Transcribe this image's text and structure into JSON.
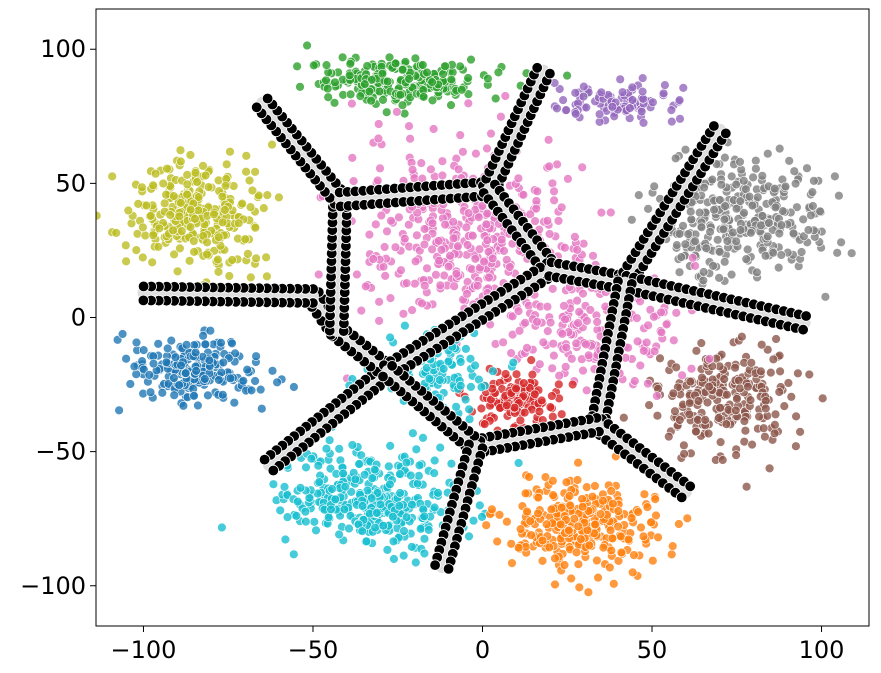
{
  "chart_data": {
    "type": "scatter",
    "title": "",
    "xlabel": "",
    "ylabel": "",
    "xlim": [
      -114,
      114
    ],
    "ylim": [
      -115,
      115
    ],
    "grid": false,
    "legend": "none",
    "xticks": [
      -100,
      -50,
      0,
      50,
      100
    ],
    "yticks": [
      -100,
      -50,
      0,
      50,
      100
    ],
    "xtick_labels": [
      "−100",
      "−50",
      "0",
      "50",
      "100"
    ],
    "ytick_labels": [
      "−100",
      "−50",
      "0",
      "50",
      "100"
    ],
    "point_outline_color": "#ffffff",
    "clusters": [
      {
        "color": "#2ca02c",
        "center": [
          -25,
          88
        ],
        "spread": [
          22,
          7
        ],
        "count": 240
      },
      {
        "color": "#1f77b4",
        "center": [
          -85,
          -20
        ],
        "spread": [
          15,
          10
        ],
        "count": 220
      },
      {
        "color": "#bcbd22",
        "center": [
          -85,
          38
        ],
        "spread": [
          16,
          16
        ],
        "count": 300
      },
      {
        "color": "#17becf",
        "center": [
          -32,
          -68
        ],
        "spread": [
          22,
          15
        ],
        "count": 380
      },
      {
        "color": "#ff7f0e",
        "center": [
          30,
          -78
        ],
        "spread": [
          18,
          14
        ],
        "count": 300
      },
      {
        "color": "#7f7f7f",
        "center": [
          75,
          38
        ],
        "spread": [
          20,
          18
        ],
        "count": 340
      },
      {
        "color": "#8c564b",
        "center": [
          72,
          -30
        ],
        "spread": [
          18,
          16
        ],
        "count": 240
      },
      {
        "color": "#e377c2",
        "center": [
          -5,
          30
        ],
        "spread": [
          28,
          28
        ],
        "count": 460
      },
      {
        "color": "#e377c2",
        "center": [
          35,
          -5
        ],
        "spread": [
          20,
          18
        ],
        "count": 200
      },
      {
        "color": "#d62728",
        "center": [
          10,
          -30
        ],
        "spread": [
          10,
          8
        ],
        "count": 120
      },
      {
        "color": "#9467bd",
        "center": [
          40,
          80
        ],
        "spread": [
          15,
          6
        ],
        "count": 100
      },
      {
        "color": "#17becf",
        "center": [
          -15,
          -20
        ],
        "spread": [
          15,
          12
        ],
        "count": 120
      }
    ],
    "boundary_color": "#000000",
    "boundary_nodes": {
      "A": [
        -28,
        -20
      ],
      "B": [
        20,
        18
      ],
      "C": [
        42,
        13
      ],
      "D": [
        -42,
        44
      ],
      "E": [
        2,
        48
      ],
      "F": [
        -2,
        -48
      ],
      "G": [
        34,
        -40
      ]
    },
    "boundary_segments": [
      [
        "A",
        [
          -63,
          -55
        ]
      ],
      [
        "A",
        [
          -43,
          -5
        ]
      ],
      [
        [
          -43,
          -5
        ],
        [
          -50,
          8
        ]
      ],
      [
        [
          -50,
          8
        ],
        [
          -100,
          9
        ]
      ],
      [
        [
          -43,
          -5
        ],
        "D"
      ],
      [
        "D",
        [
          -65,
          80
        ]
      ],
      [
        "D",
        "E"
      ],
      [
        "E",
        [
          18,
          92
        ]
      ],
      [
        "E",
        "B"
      ],
      [
        "B",
        "A"
      ],
      [
        "B",
        "C"
      ],
      [
        "C",
        [
          70,
          70
        ]
      ],
      [
        "C",
        [
          95,
          -2
        ]
      ],
      [
        "C",
        "G"
      ],
      [
        "G",
        [
          60,
          -65
        ]
      ],
      [
        "G",
        "F"
      ],
      [
        "F",
        "A"
      ],
      [
        "F",
        [
          -12,
          -93
        ]
      ]
    ]
  }
}
